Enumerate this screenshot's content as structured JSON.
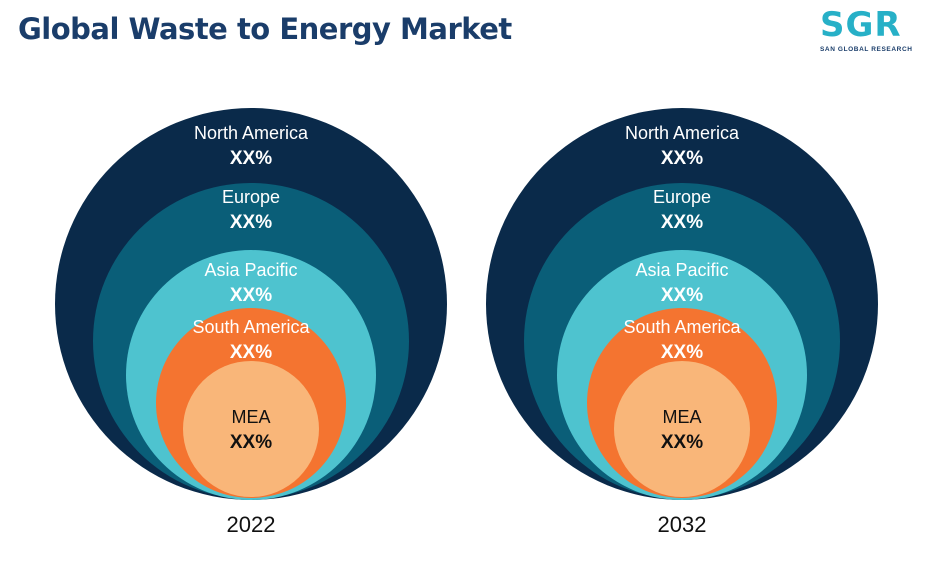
{
  "header": {
    "title": "Global Waste to Energy Market"
  },
  "logo": {
    "letters": "SGR",
    "subtitle": "SAN GLOBAL RESEARCH"
  },
  "chart_data": {
    "type": "nested-circles",
    "title": "Global Waste to Energy Market",
    "panels": [
      {
        "year": "2022",
        "segments": [
          {
            "label": "North America",
            "value": "XX%",
            "color": "#0a2a4a"
          },
          {
            "label": "Europe",
            "value": "XX%",
            "color": "#0a5e78"
          },
          {
            "label": "Asia Pacific",
            "value": "XX%",
            "color": "#4ec3cf"
          },
          {
            "label": "South America",
            "value": "XX%",
            "color": "#f47430"
          },
          {
            "label": "MEA",
            "value": "XX%",
            "color": "#f9b679"
          }
        ]
      },
      {
        "year": "2032",
        "segments": [
          {
            "label": "North America",
            "value": "XX%",
            "color": "#0a2a4a"
          },
          {
            "label": "Europe",
            "value": "XX%",
            "color": "#0a5e78"
          },
          {
            "label": "Asia Pacific",
            "value": "XX%",
            "color": "#4ec3cf"
          },
          {
            "label": "South America",
            "value": "XX%",
            "color": "#f47430"
          },
          {
            "label": "MEA",
            "value": "XX%",
            "color": "#f9b679"
          }
        ]
      }
    ]
  }
}
